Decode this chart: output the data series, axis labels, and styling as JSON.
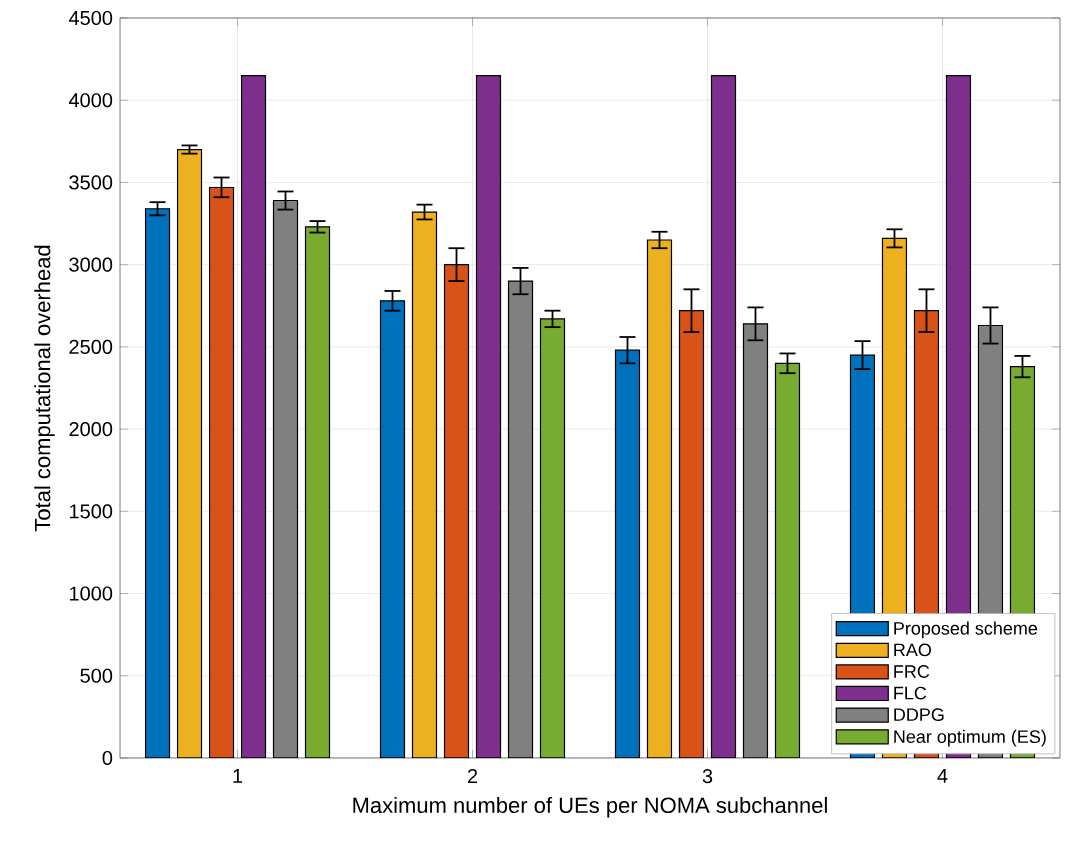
{
  "chart_data": {
    "type": "bar",
    "xlabel": "Maximum number of UEs per NOMA subchannel",
    "ylabel": "Total computational overhead",
    "categories": [
      "1",
      "2",
      "3",
      "4"
    ],
    "series": [
      {
        "name": "Proposed scheme",
        "color": "#0072bd",
        "values": [
          3340,
          2780,
          2480,
          2450
        ],
        "errors": [
          40,
          60,
          80,
          85
        ]
      },
      {
        "name": "RAO",
        "color": "#edb120",
        "values": [
          3700,
          3320,
          3150,
          3160
        ],
        "errors": [
          25,
          45,
          50,
          55
        ]
      },
      {
        "name": "FRC",
        "color": "#d95319",
        "values": [
          3470,
          3000,
          2720,
          2720
        ],
        "errors": [
          60,
          100,
          130,
          130
        ]
      },
      {
        "name": "FLC",
        "color": "#7e2f8e",
        "values": [
          4150,
          4150,
          4150,
          4150
        ],
        "errors": [
          null,
          null,
          null,
          null
        ]
      },
      {
        "name": "DDPG",
        "color": "#808080",
        "values": [
          3390,
          2900,
          2640,
          2630
        ],
        "errors": [
          55,
          80,
          100,
          110
        ]
      },
      {
        "name": "Near optimum (ES)",
        "color": "#77ac30",
        "values": [
          3230,
          2670,
          2400,
          2380
        ],
        "errors": [
          35,
          50,
          60,
          65
        ]
      }
    ],
    "ylim": [
      0,
      4500
    ],
    "yticks": [
      0,
      500,
      1000,
      1500,
      2000,
      2500,
      3000,
      3500,
      4000,
      4500
    ],
    "grid": true,
    "legend": "bottom right"
  }
}
